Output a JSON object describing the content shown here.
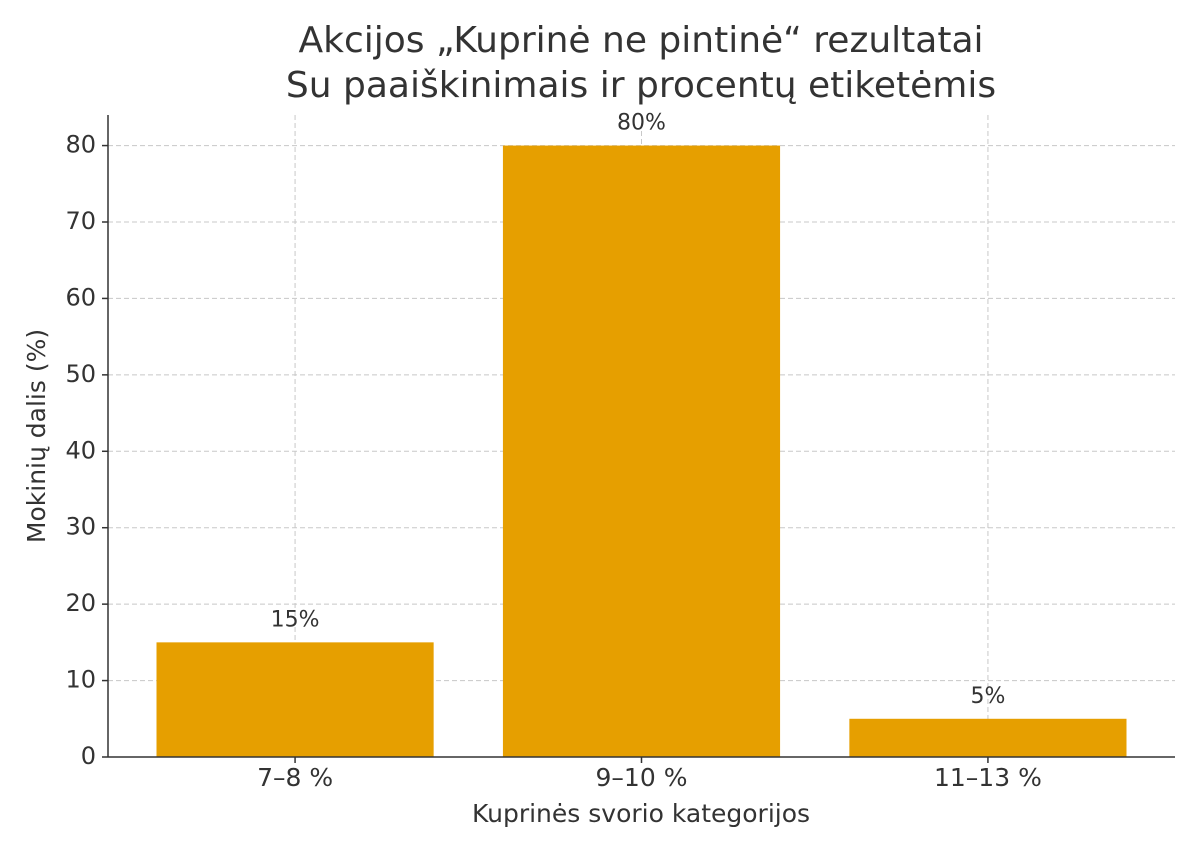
{
  "chart_data": {
    "type": "bar",
    "title": "Akcijos „Kuprinė ne pintinė“ rezultatai",
    "subtitle": "Su paaiškinimais ir procentų etiketėmis",
    "x_label": "Kuprinės svorio kategorijos",
    "y_label": "Mokinių dalis (%)",
    "categories": [
      "7–8 %",
      "9–10 %",
      "11–13 %"
    ],
    "values": [
      15,
      80,
      5
    ],
    "value_labels": [
      "15%",
      "80%",
      "5%"
    ],
    "color": "#e69f00",
    "ylim": [
      0,
      84
    ],
    "yticks": [
      0,
      10,
      20,
      30,
      40,
      50,
      60,
      70,
      80
    ],
    "grid": true
  }
}
